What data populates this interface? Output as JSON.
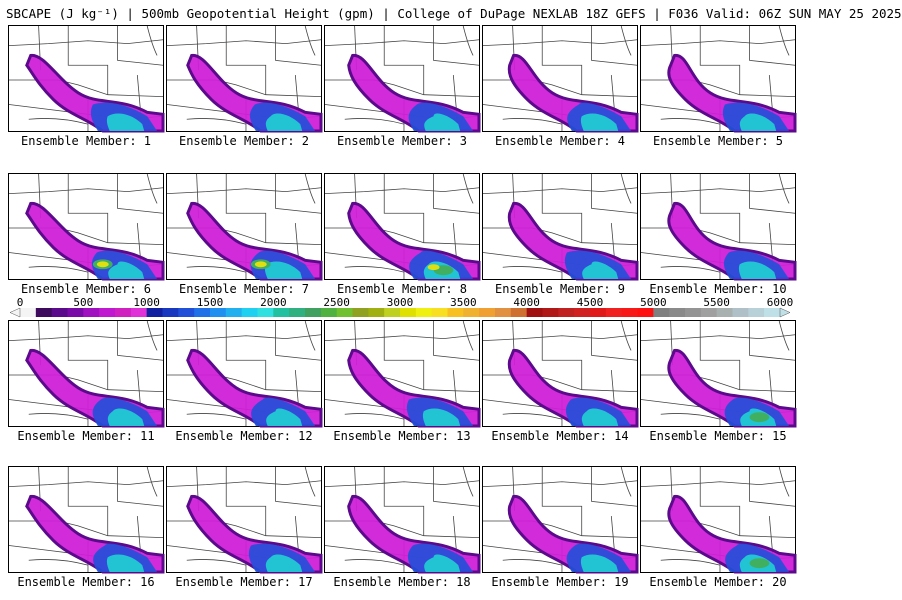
{
  "header": {
    "title": "SBCAPE (J kg⁻¹) | 500mb Geopotential Height (gpm) | College of DuPage NEXLAB 18Z GEFS | F036 Valid: 06Z SUN MAY 25 2025"
  },
  "panels": [
    {
      "label": "Ensemble Member: 1"
    },
    {
      "label": "Ensemble Member: 2"
    },
    {
      "label": "Ensemble Member: 3"
    },
    {
      "label": "Ensemble Member: 4"
    },
    {
      "label": "Ensemble Member: 5"
    },
    {
      "label": "Ensemble Member: 6"
    },
    {
      "label": "Ensemble Member: 7"
    },
    {
      "label": "Ensemble Member: 8"
    },
    {
      "label": "Ensemble Member: 9"
    },
    {
      "label": "Ensemble Member: 10"
    },
    {
      "label": "Ensemble Member: 11"
    },
    {
      "label": "Ensemble Member: 12"
    },
    {
      "label": "Ensemble Member: 13"
    },
    {
      "label": "Ensemble Member: 14"
    },
    {
      "label": "Ensemble Member: 15"
    },
    {
      "label": "Ensemble Member: 16"
    },
    {
      "label": "Ensemble Member: 17"
    },
    {
      "label": "Ensemble Member: 18"
    },
    {
      "label": "Ensemble Member: 19"
    },
    {
      "label": "Ensemble Member: 20"
    }
  ],
  "colorbar": {
    "ticks": [
      "0",
      "500",
      "1000",
      "1500",
      "2000",
      "2500",
      "3000",
      "3500",
      "4000",
      "4500",
      "5000",
      "5500",
      "6000"
    ],
    "colors": [
      "#f4f4f4",
      "#3d0a5e",
      "#5a0a8a",
      "#7a0aa8",
      "#a010c0",
      "#c018d0",
      "#d020c0",
      "#e030d8",
      "#1020a0",
      "#1838c0",
      "#2050d8",
      "#2070e8",
      "#2090f0",
      "#20b0f0",
      "#20d0f0",
      "#30e0e0",
      "#20c0a0",
      "#30b080",
      "#40a060",
      "#50b040",
      "#70c030",
      "#90a020",
      "#a0b010",
      "#c0d020",
      "#e0e000",
      "#f0f010",
      "#f8e020",
      "#f8c020",
      "#f0b030",
      "#f0a030",
      "#e09040",
      "#d07030",
      "#a01010",
      "#b01818",
      "#c02020",
      "#d02020",
      "#e01818",
      "#f02020",
      "#f81818",
      "#ff1010",
      "#808080",
      "#8a8a8a",
      "#949494",
      "#a0a0a0",
      "#a8b0b0",
      "#b0c0c8",
      "#b8d0d8",
      "#c0e0e8"
    ]
  },
  "map_style": {
    "cape_low": "#5a0a8a",
    "cape_mid": "#d020d8",
    "cape_high1": "#2050d8",
    "cape_high2": "#20d0d0",
    "cape_high3": "#40b060",
    "cape_peak": "#e0e010",
    "border_color": "#444444"
  }
}
